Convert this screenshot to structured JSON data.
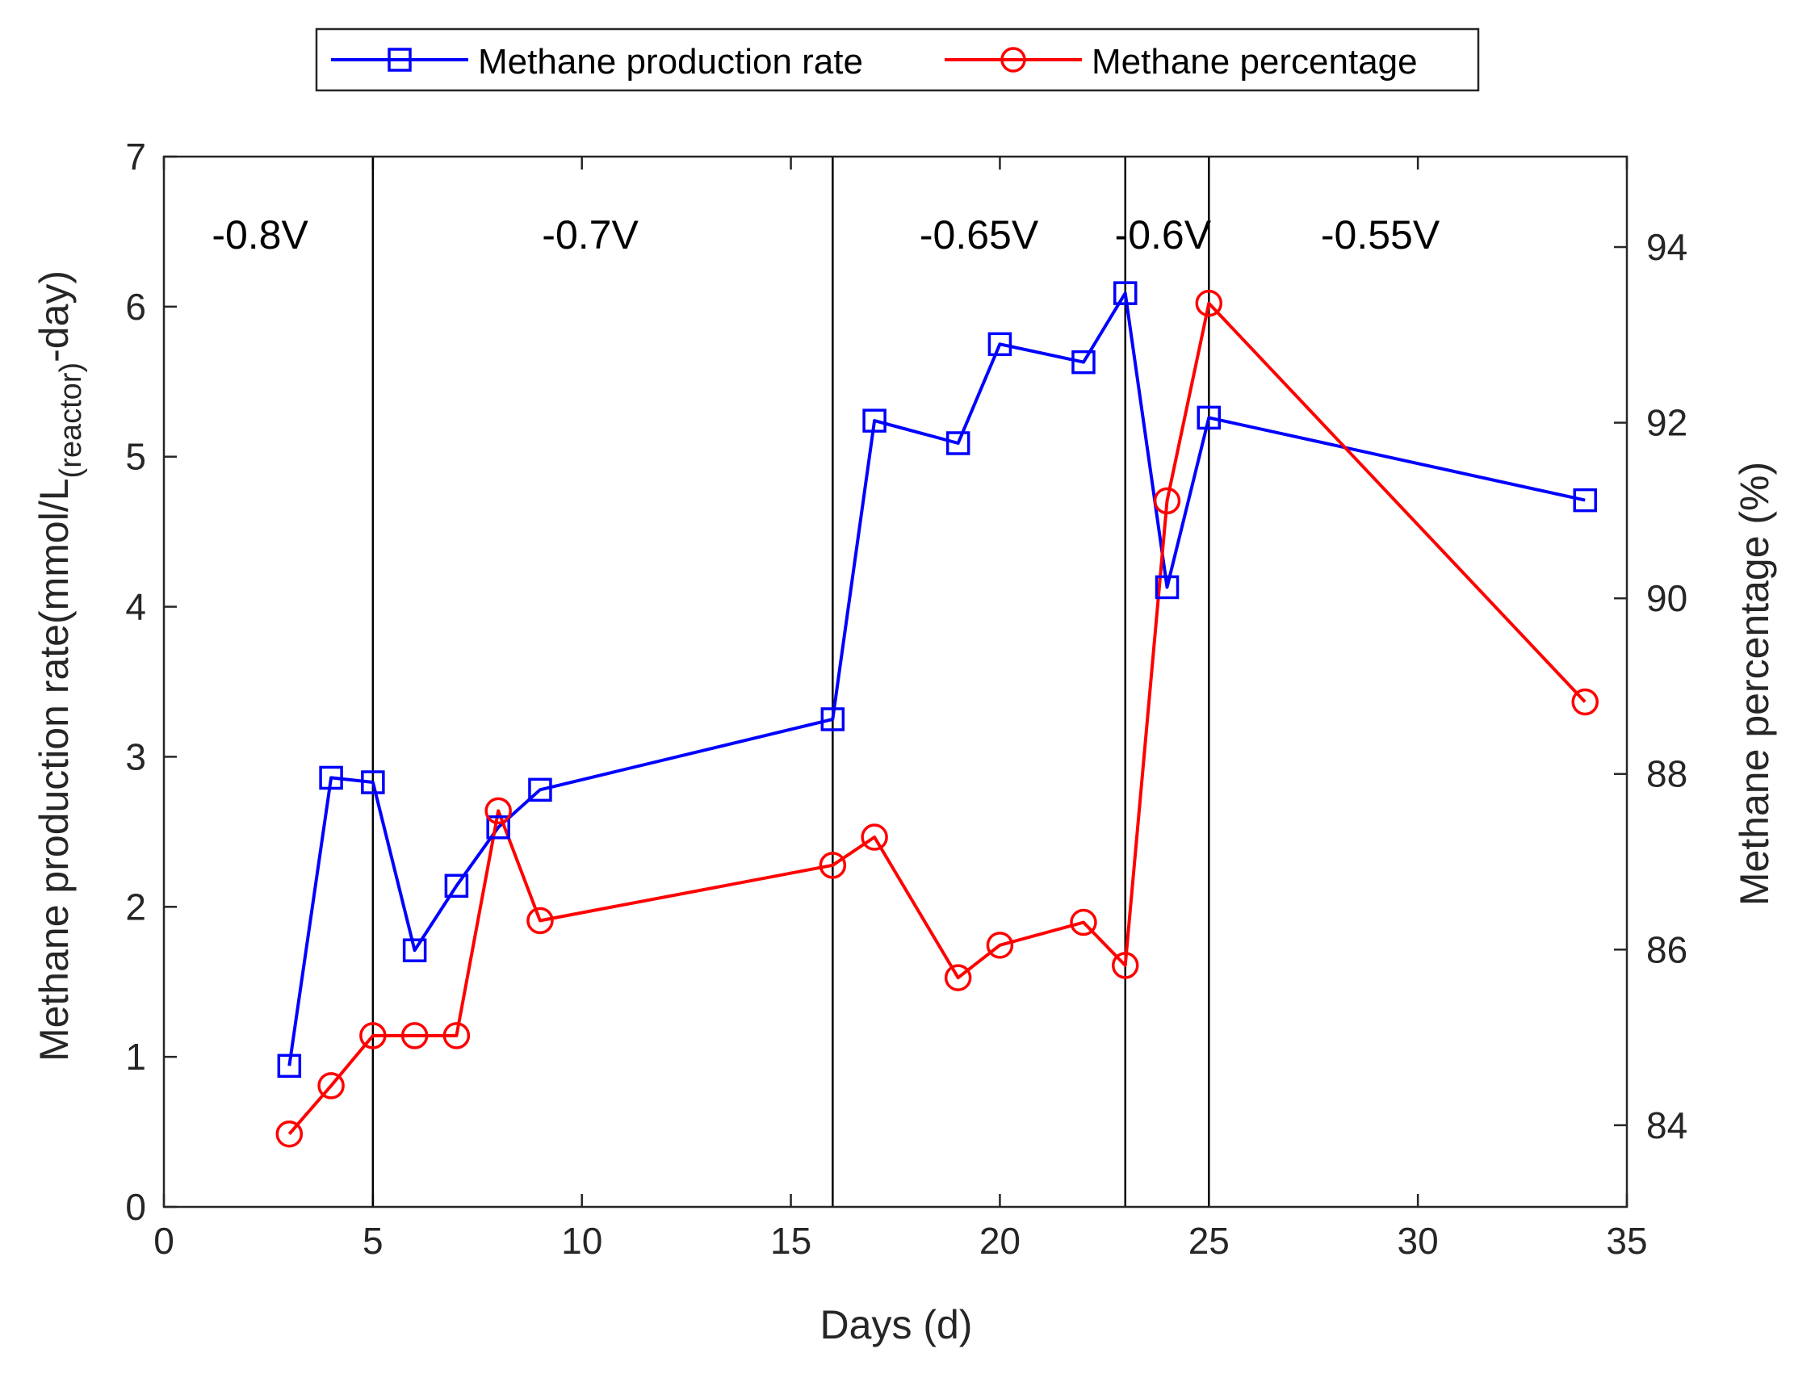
{
  "chart_data": {
    "type": "line",
    "xlabel": "Days (d)",
    "ylabel_left": {
      "main": "Methane production rate(mmol/L",
      "subscript": "(reactor)",
      "suffix": "-day)"
    },
    "ylabel_right": "Methane percentage (%)",
    "xlim": [
      0,
      35
    ],
    "ylim_left": [
      0,
      7
    ],
    "ylim_right": [
      83.07,
      95.03
    ],
    "x_ticks": [
      0,
      5,
      10,
      15,
      20,
      25,
      30,
      35
    ],
    "y_left_ticks": [
      0,
      1,
      2,
      3,
      4,
      5,
      6,
      7
    ],
    "y_right_ticks": [
      84,
      86,
      88,
      90,
      92,
      94
    ],
    "grid": false,
    "legend_position": "top-center, outside",
    "phase_boundaries": [
      5,
      16,
      23,
      25
    ],
    "phase_labels": [
      {
        "label": "-0.8V",
        "x": 2.3
      },
      {
        "label": "-0.7V",
        "x": 10.2
      },
      {
        "label": "-0.65V",
        "x": 19.5
      },
      {
        "label": "-0.6V",
        "x": 23.9
      },
      {
        "label": "-0.55V",
        "x": 29.1
      }
    ],
    "series": [
      {
        "name": "Methane production rate",
        "axis": "left",
        "color": "#0000ff",
        "marker": "square",
        "x": [
          3,
          4,
          5,
          6,
          7,
          8,
          9,
          16,
          17,
          19,
          20,
          22,
          23,
          24,
          25,
          34
        ],
        "values": [
          0.94,
          2.86,
          2.83,
          1.71,
          2.14,
          2.53,
          2.78,
          3.25,
          5.24,
          5.09,
          5.75,
          5.63,
          6.09,
          4.13,
          5.26,
          4.71
        ]
      },
      {
        "name": "Methane percentage",
        "axis": "right",
        "color": "#ff0000",
        "marker": "circle",
        "x": [
          3,
          4,
          5,
          6,
          7,
          8,
          9,
          16,
          17,
          19,
          20,
          22,
          23,
          24,
          25,
          34
        ],
        "values": [
          83.9,
          84.45,
          85.02,
          85.02,
          85.02,
          87.58,
          86.33,
          86.96,
          87.28,
          85.68,
          86.05,
          86.31,
          85.82,
          91.11,
          93.36,
          88.82
        ]
      }
    ]
  }
}
